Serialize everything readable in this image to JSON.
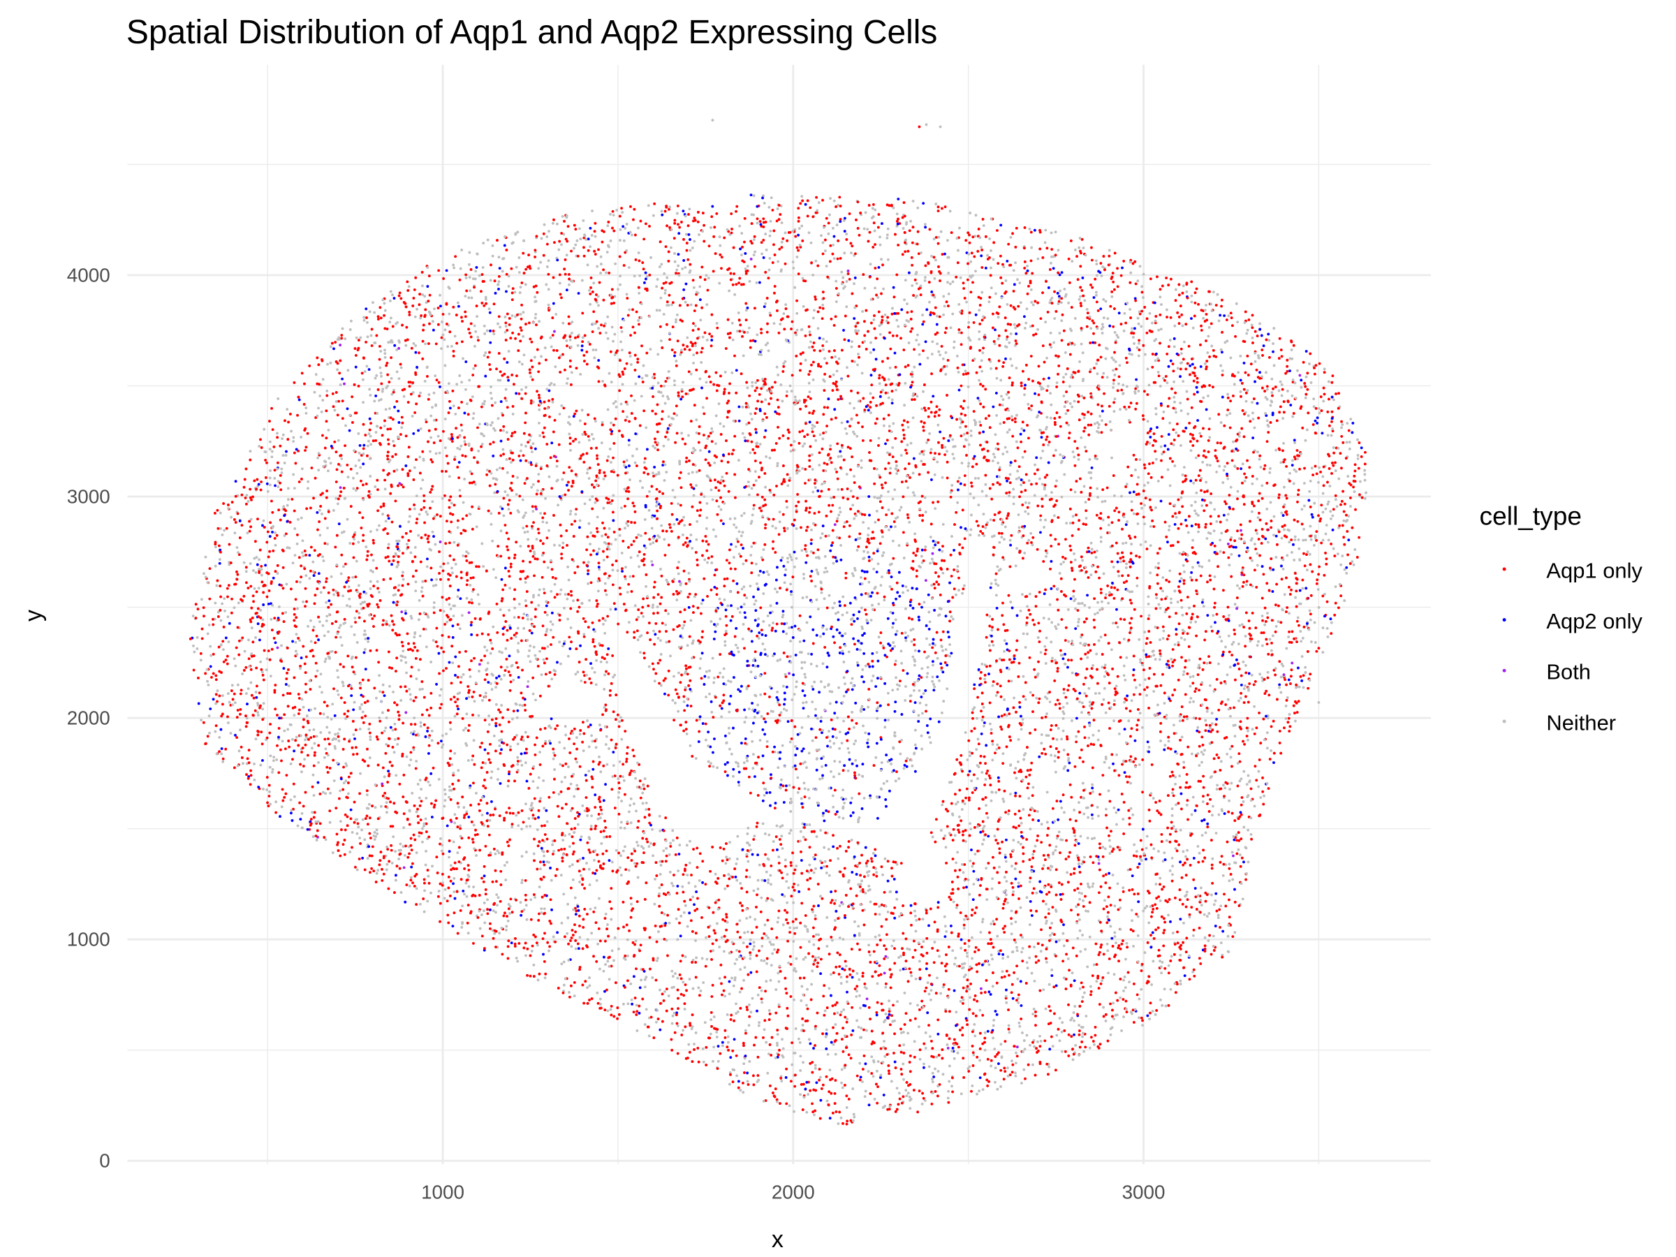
{
  "chart_data": {
    "type": "scatter",
    "title": "Spatial Distribution of Aqp1 and Aqp2 Expressing Cells",
    "xlabel": "x",
    "ylabel": "y",
    "xlim": [
      100,
      3820
    ],
    "ylim": [
      -15,
      4950
    ],
    "xticks": [
      "1000",
      "2000",
      "3000"
    ],
    "xtick_values": [
      1000,
      2000,
      3000
    ],
    "yticks": [
      "0",
      "1000",
      "2000",
      "3000",
      "4000"
    ],
    "ytick_values": [
      0,
      1000,
      2000,
      3000,
      4000
    ],
    "grid": true,
    "legend": {
      "title": "cell_type",
      "placement": "right",
      "entries": [
        {
          "label": "Aqp1 only",
          "color": "#ff0000"
        },
        {
          "label": "Aqp2 only",
          "color": "#0000ff"
        },
        {
          "label": "Both",
          "color": "#a020f0"
        },
        {
          "label": "Neither",
          "color": "#bebebe"
        }
      ]
    },
    "tissue_outline": [
      [
        275,
        2366
      ],
      [
        352,
        2951
      ],
      [
        537,
        3488
      ],
      [
        753,
        3829
      ],
      [
        1031,
        4122
      ],
      [
        1401,
        4293
      ],
      [
        1895,
        4366
      ],
      [
        2358,
        4341
      ],
      [
        2821,
        4171
      ],
      [
        3222,
        3927
      ],
      [
        3531,
        3585
      ],
      [
        3648,
        3146
      ],
      [
        3608,
        2659
      ],
      [
        3469,
        2122
      ],
      [
        3330,
        1537
      ],
      [
        3253,
        951
      ],
      [
        3006,
        610
      ],
      [
        2698,
        366
      ],
      [
        2358,
        220
      ],
      [
        2142,
        161
      ],
      [
        1895,
        268
      ],
      [
        1586,
        561
      ],
      [
        1216,
        854
      ],
      [
        815,
        1244
      ],
      [
        537,
        1537
      ],
      [
        321,
        1878
      ]
    ],
    "central_cavity": [
      [
        1478,
        2463
      ],
      [
        1509,
        2024
      ],
      [
        1602,
        1634
      ],
      [
        1741,
        1390
      ],
      [
        1895,
        1537
      ],
      [
        2142,
        1488
      ],
      [
        2327,
        1341
      ],
      [
        2451,
        1146
      ],
      [
        2389,
        1488
      ],
      [
        2451,
        1732
      ],
      [
        2543,
        2317
      ],
      [
        2574,
        2805
      ],
      [
        2512,
        2805
      ],
      [
        2420,
        1927
      ],
      [
        2265,
        1537
      ],
      [
        2019,
        1512
      ],
      [
        1710,
        1829
      ],
      [
        1556,
        2317
      ]
    ],
    "small_gaps": [
      [
        1370,
        2073,
        95,
        90
      ],
      [
        1405,
        3450,
        80,
        60
      ],
      [
        2930,
        3240,
        70,
        60
      ],
      [
        2670,
        2630,
        90,
        60
      ],
      [
        2370,
        1270,
        80,
        110
      ],
      [
        1890,
        3600,
        60,
        40
      ],
      [
        1195,
        1650,
        70,
        40
      ],
      [
        1580,
        1110,
        40,
        50
      ],
      [
        3000,
        1720,
        40,
        30
      ]
    ],
    "medulla_region": {
      "center": [
        2100,
        2150
      ],
      "radius": [
        380,
        650
      ]
    },
    "composition": {
      "cortex": {
        "Aqp1 only": 0.52,
        "Aqp2 only": 0.07,
        "Both": 0.004,
        "Neither": 0.406
      },
      "medulla": {
        "Aqp1 only": 0.17,
        "Aqp2 only": 0.33,
        "Both": 0.006,
        "Neither": 0.494
      }
    },
    "outliers": [
      {
        "x": 2380,
        "y": 4680,
        "type": "Neither"
      },
      {
        "x": 2420,
        "y": 4670,
        "type": "Neither"
      },
      {
        "x": 2360,
        "y": 4670,
        "type": "Aqp1 only"
      },
      {
        "x": 1770,
        "y": 4700,
        "type": "Neither"
      },
      {
        "x": 3500,
        "y": 2070,
        "type": "Neither"
      }
    ]
  }
}
